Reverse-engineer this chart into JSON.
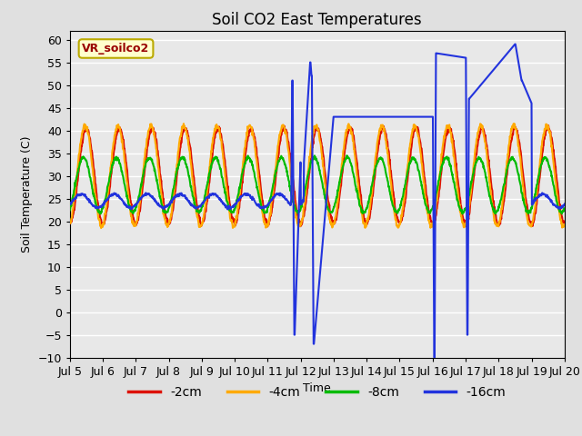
{
  "title": "Soil CO2 East Temperatures",
  "xlabel": "Time",
  "ylabel": "Soil Temperature (C)",
  "ylim": [
    -10,
    62
  ],
  "yticks": [
    -10,
    -5,
    0,
    5,
    10,
    15,
    20,
    25,
    30,
    35,
    40,
    45,
    50,
    55,
    60
  ],
  "bg_color": "#e0e0e0",
  "plot_bg_color": "#e8e8e8",
  "grid_color": "#ffffff",
  "colors": {
    "2cm": "#dd1100",
    "4cm": "#ffaa00",
    "8cm": "#00bb00",
    "16cm": "#2233dd"
  },
  "legend_label": "VR_soilco2",
  "legend_bg": "#ffffcc",
  "legend_border": "#bbaa00",
  "x_tick_labels": [
    "Jul 5",
    "Jul 6",
    "Jul 7",
    "Jul 8",
    "Jul 9",
    "Jul 10",
    "Jul 11",
    "Jul 12",
    "Jul 13",
    "Jul 14",
    "Jul 15",
    "Jul 16",
    "Jul 17",
    "Jul 18",
    "Jul 19",
    "Jul 20"
  ],
  "n_points_per_day": 96,
  "n_days": 15
}
